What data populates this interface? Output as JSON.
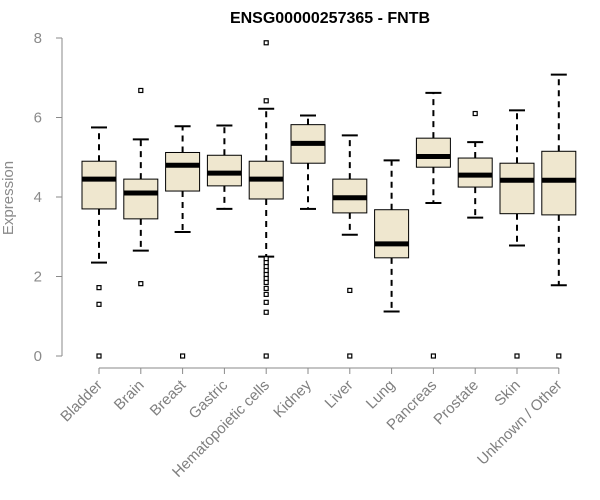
{
  "chart_data": {
    "type": "boxplot",
    "title": "ENSG00000257365 - FNTB",
    "xlabel": "",
    "ylabel": "Expression",
    "ylim": [
      0,
      8
    ],
    "yticks": [
      0,
      2,
      4,
      6,
      8
    ],
    "grid": false,
    "box_fill": "#efe7cf",
    "line_color": "#000000",
    "axis_color": "#8a8a8a",
    "categories": [
      "Bladder",
      "Brain",
      "Breast",
      "Gastric",
      "Hematopoietic cells",
      "Kidney",
      "Liver",
      "Lung",
      "Pancreas",
      "Prostate",
      "Skin",
      "Unknown / Other"
    ],
    "boxes": [
      {
        "name": "Bladder",
        "whisker_low": 2.35,
        "q1": 3.7,
        "median": 4.45,
        "q3": 4.9,
        "whisker_high": 5.75,
        "outliers": [
          1.72,
          1.3,
          0.0
        ]
      },
      {
        "name": "Brain",
        "whisker_low": 2.65,
        "q1": 3.45,
        "median": 4.1,
        "q3": 4.45,
        "whisker_high": 5.45,
        "outliers": [
          6.68,
          1.82
        ]
      },
      {
        "name": "Breast",
        "whisker_low": 3.12,
        "q1": 4.15,
        "median": 4.8,
        "q3": 5.12,
        "whisker_high": 5.78,
        "outliers": [
          0.0
        ]
      },
      {
        "name": "Gastric",
        "whisker_low": 3.7,
        "q1": 4.28,
        "median": 4.6,
        "q3": 5.05,
        "whisker_high": 5.8,
        "outliers": []
      },
      {
        "name": "Hematopoietic cells",
        "whisker_low": 2.5,
        "q1": 3.95,
        "median": 4.45,
        "q3": 4.9,
        "whisker_high": 6.22,
        "outliers": [
          7.88,
          6.42,
          2.45,
          2.35,
          2.25,
          2.15,
          2.05,
          1.95,
          1.85,
          1.7,
          1.55,
          1.35,
          1.1,
          0.0
        ]
      },
      {
        "name": "Kidney",
        "whisker_low": 3.7,
        "q1": 4.85,
        "median": 5.35,
        "q3": 5.82,
        "whisker_high": 6.05,
        "outliers": []
      },
      {
        "name": "Liver",
        "whisker_low": 3.05,
        "q1": 3.6,
        "median": 3.98,
        "q3": 4.45,
        "whisker_high": 5.55,
        "outliers": [
          1.65,
          0.0
        ]
      },
      {
        "name": "Lung",
        "whisker_low": 1.12,
        "q1": 2.47,
        "median": 2.82,
        "q3": 3.68,
        "whisker_high": 4.92,
        "outliers": []
      },
      {
        "name": "Pancreas",
        "whisker_low": 3.85,
        "q1": 4.75,
        "median": 5.02,
        "q3": 5.48,
        "whisker_high": 6.62,
        "outliers": [
          0.0
        ]
      },
      {
        "name": "Prostate",
        "whisker_low": 3.48,
        "q1": 4.25,
        "median": 4.55,
        "q3": 4.98,
        "whisker_high": 5.38,
        "outliers": [
          6.1
        ]
      },
      {
        "name": "Skin",
        "whisker_low": 2.78,
        "q1": 3.58,
        "median": 4.42,
        "q3": 4.85,
        "whisker_high": 6.18,
        "outliers": [
          0.0
        ]
      },
      {
        "name": "Unknown / Other",
        "whisker_low": 1.78,
        "q1": 3.55,
        "median": 4.42,
        "q3": 5.15,
        "whisker_high": 7.08,
        "outliers": [
          0.0
        ]
      }
    ]
  }
}
